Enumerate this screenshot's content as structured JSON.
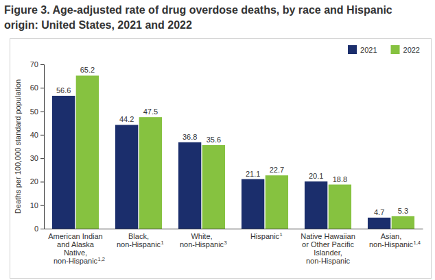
{
  "chart_data": {
    "type": "bar",
    "title": "Figure 3. Age-adjusted rate of drug overdose deaths, by race and Hispanic origin: United States, 2021 and 2022",
    "y_label": "Deaths per 100,000 standard population",
    "categories": [
      "American Indian and Alaska Native, non-Hispanic",
      "Black, non-Hispanic",
      "White, non-Hispanic",
      "Hispanic",
      "Native Hawaiian or Other Pacific Islander, non-Hispanic",
      "Asian, non-Hispanic"
    ],
    "category_notes": [
      "1,2",
      "1",
      "3",
      "1",
      null,
      "1,4"
    ],
    "series": [
      {
        "name": "2021",
        "color": "#1b2e6c",
        "values": [
          56.6,
          44.2,
          36.8,
          21.1,
          20.1,
          4.7
        ]
      },
      {
        "name": "2022",
        "color": "#86c240",
        "values": [
          65.2,
          47.5,
          35.6,
          22.7,
          18.8,
          5.3
        ]
      }
    ],
    "ylim": [
      0,
      70
    ],
    "yticks": [
      0,
      10,
      20,
      30,
      40,
      50,
      60,
      70
    ],
    "grid": false,
    "legend": "top-right",
    "data_labels": true
  }
}
